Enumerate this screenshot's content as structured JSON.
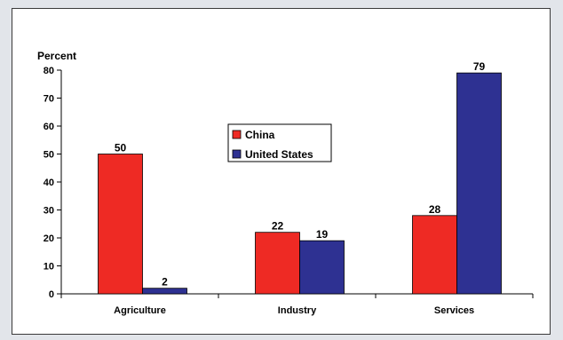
{
  "chart_data": {
    "type": "bar",
    "ylabel": "Percent",
    "ylim": [
      0,
      80
    ],
    "ytick_step": 10,
    "categories": [
      "Agriculture",
      "Industry",
      "Services"
    ],
    "series": [
      {
        "name": "China",
        "values": [
          50,
          22,
          28
        ],
        "color": "#ee2a24"
      },
      {
        "name": "United States",
        "values": [
          2,
          19,
          79
        ],
        "color": "#2e3192"
      }
    ],
    "data_labels": [
      [
        "50",
        "22",
        "28"
      ],
      [
        "2",
        "19",
        "79"
      ]
    ],
    "legend_position": "center",
    "grid": false
  }
}
